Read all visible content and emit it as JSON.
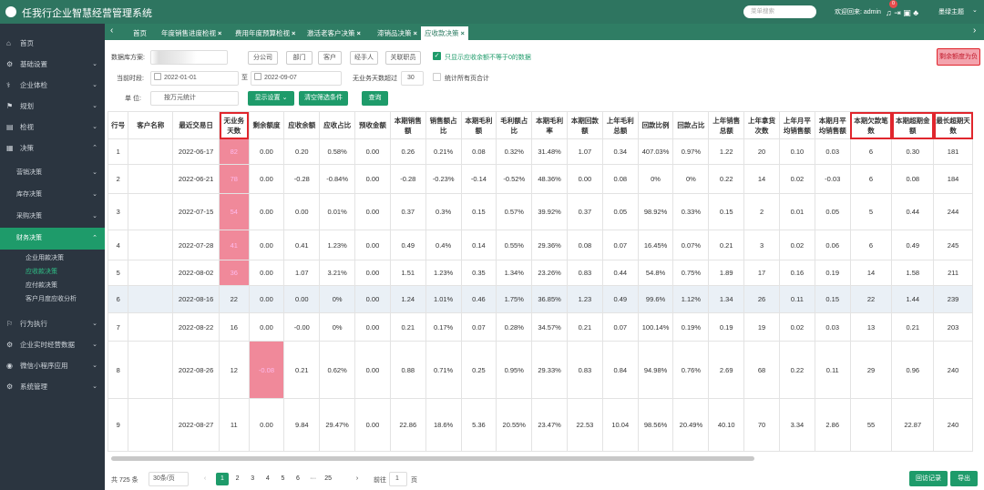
{
  "header": {
    "title": "任我行企业智慧经营管理系统",
    "search_placeholder": "菜单搜索",
    "welcome": "欢迎回来: admin",
    "badge": "0",
    "theme": "墨绿主题"
  },
  "sidebar": [
    {
      "label": "首页"
    },
    {
      "label": "基础设置"
    },
    {
      "label": "企业体检"
    },
    {
      "label": "规划"
    },
    {
      "label": "检视"
    },
    {
      "label": "决策",
      "children": [
        {
          "label": "营销决策"
        },
        {
          "label": "库存决策"
        },
        {
          "label": "采购决策"
        },
        {
          "label": "财务决策",
          "children": [
            {
              "label": "企业用款决策"
            },
            {
              "label": "应收款决策"
            },
            {
              "label": "应付款决策"
            },
            {
              "label": "客户月度应收分析"
            }
          ]
        }
      ]
    },
    {
      "label": "行为执行"
    },
    {
      "label": "企业实时经营数据"
    },
    {
      "label": "微信小程序应用"
    },
    {
      "label": "系统管理"
    }
  ],
  "tabs": [
    "首页",
    "年度销售进度检视",
    "费用年度预算检视",
    "激活老客户决策",
    "滞销品决策",
    "应收款决策"
  ],
  "filters": {
    "db_label": "数据库方案:",
    "scope_buttons": [
      "分公司",
      "部门",
      "客户",
      "经手人",
      "关联职员"
    ],
    "nonzero_check": "只显示应收余额不等于0的数据",
    "period_label": "当前时段:",
    "date_from": "2022-01-01",
    "date_to_sep": "至",
    "date_to": "2022-09-07",
    "idle_label": "无业务天数超过",
    "idle_days": "30",
    "all_pages_check": "统计所有页合计",
    "unit_label": "单 位:",
    "unit_value": "按万元统计",
    "display_btn": "显示设置",
    "clear_btn": "清空筛选条件",
    "query_btn": "查询",
    "negative_btn": "剩余额度为负"
  },
  "table": {
    "columns": [
      "行号",
      "客户名称",
      "最近交易日",
      "无业务天数",
      "剩余额度",
      "应收余额",
      "应收占比",
      "预收金额",
      "本期销售额",
      "销售额占比",
      "本期毛利额",
      "毛利额占比",
      "本期毛利率",
      "本期回款额",
      "上年毛利总额",
      "回款比例",
      "回款占比",
      "上年销售总额",
      "上年拿货次数",
      "上年月平均销售额",
      "本期月平均销售额",
      "本期欠款笔数",
      "本期超期金额",
      "最长超期天数"
    ],
    "rows": [
      [
        "1",
        null,
        "2022-06-17",
        "82",
        "0.00",
        "0.20",
        "0.58%",
        "0.00",
        "0.26",
        "0.21%",
        "0.08",
        "0.32%",
        "31.48%",
        "1.07",
        "0.34",
        "407.03%",
        "0.97%",
        "1.22",
        "20",
        "0.10",
        "0.03",
        "6",
        "0.30",
        "181"
      ],
      [
        "2",
        null,
        "2022-06-21",
        "78",
        "0.00",
        "-0.28",
        "-0.84%",
        "0.00",
        "-0.28",
        "-0.23%",
        "-0.14",
        "-0.52%",
        "48.36%",
        "0.00",
        "0.08",
        "0%",
        "0%",
        "0.22",
        "14",
        "0.02",
        "-0.03",
        "6",
        "0.08",
        "184"
      ],
      [
        "3",
        null,
        "2022-07-15",
        "54",
        "0.00",
        "0.00",
        "0.01%",
        "0.00",
        "0.37",
        "0.3%",
        "0.15",
        "0.57%",
        "39.92%",
        "0.37",
        "0.05",
        "98.92%",
        "0.33%",
        "0.15",
        "2",
        "0.01",
        "0.05",
        "5",
        "0.44",
        "244"
      ],
      [
        "4",
        null,
        "2022-07-28",
        "41",
        "0.00",
        "0.41",
        "1.23%",
        "0.00",
        "0.49",
        "0.4%",
        "0.14",
        "0.55%",
        "29.36%",
        "0.08",
        "0.07",
        "16.45%",
        "0.07%",
        "0.21",
        "3",
        "0.02",
        "0.06",
        "6",
        "0.49",
        "245"
      ],
      [
        "5",
        null,
        "2022-08-02",
        "36",
        "0.00",
        "1.07",
        "3.21%",
        "0.00",
        "1.51",
        "1.23%",
        "0.35",
        "1.34%",
        "23.26%",
        "0.83",
        "0.44",
        "54.8%",
        "0.75%",
        "1.89",
        "17",
        "0.16",
        "0.19",
        "14",
        "1.58",
        "211"
      ],
      [
        "6",
        null,
        "2022-08-16",
        "22",
        "0.00",
        "0.00",
        "0%",
        "0.00",
        "1.24",
        "1.01%",
        "0.46",
        "1.75%",
        "36.85%",
        "1.23",
        "0.49",
        "99.6%",
        "1.12%",
        "1.34",
        "26",
        "0.11",
        "0.15",
        "22",
        "1.44",
        "239"
      ],
      [
        "7",
        null,
        "2022-08-22",
        "16",
        "0.00",
        "-0.00",
        "0%",
        "0.00",
        "0.21",
        "0.17%",
        "0.07",
        "0.28%",
        "34.57%",
        "0.21",
        "0.07",
        "100.14%",
        "0.19%",
        "0.19",
        "19",
        "0.02",
        "0.03",
        "13",
        "0.21",
        "203"
      ],
      [
        "8",
        null,
        "2022-08-26",
        "12",
        "-0.08",
        "0.21",
        "0.62%",
        "0.00",
        "0.88",
        "0.71%",
        "0.25",
        "0.95%",
        "29.33%",
        "0.83",
        "0.84",
        "94.98%",
        "0.76%",
        "2.69",
        "68",
        "0.22",
        "0.11",
        "29",
        "0.96",
        "240"
      ],
      [
        "9",
        null,
        "2022-08-27",
        "11",
        "0.00",
        "9.84",
        "29.47%",
        "0.00",
        "22.86",
        "18.6%",
        "5.36",
        "20.55%",
        "23.47%",
        "22.53",
        "10.04",
        "98.56%",
        "20.49%",
        "40.10",
        "70",
        "3.34",
        "2.86",
        "55",
        "22.87",
        "240"
      ]
    ]
  },
  "pagination": {
    "total": "共 725 条",
    "page_size": "30条/页",
    "pages": [
      "1",
      "2",
      "3",
      "4",
      "5",
      "6",
      "···",
      "25"
    ],
    "goto_label": "前往",
    "goto_value": "1",
    "goto_unit": "页"
  },
  "actions": {
    "visit_log": "回访记录",
    "export": "导出"
  }
}
